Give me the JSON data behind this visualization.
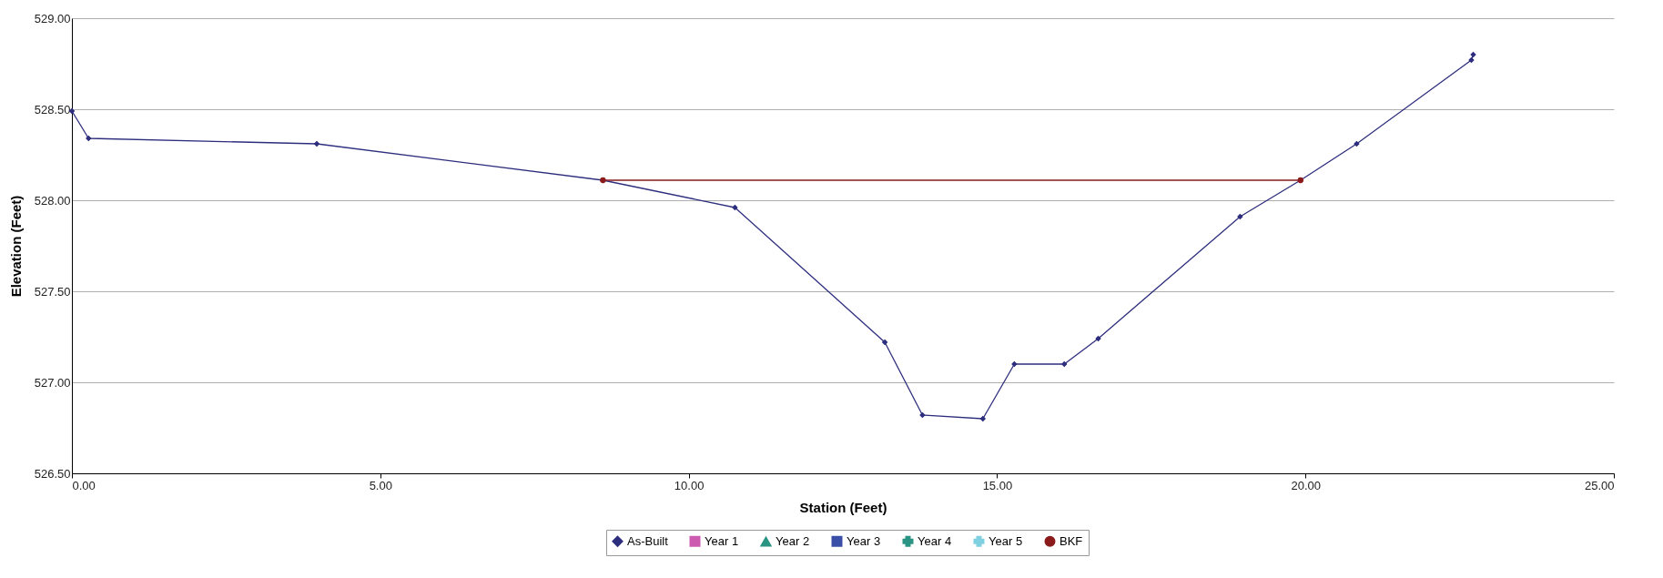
{
  "chart_data": {
    "type": "line",
    "xlabel": "Station (Feet)",
    "ylabel": "Elevation (Feet)",
    "xlim": [
      0,
      25
    ],
    "xticks": [
      {
        "value": 0,
        "label": "0.00"
      },
      {
        "value": 5,
        "label": "5.00"
      },
      {
        "value": 10,
        "label": "10.00"
      },
      {
        "value": 15,
        "label": "15.00"
      },
      {
        "value": 20,
        "label": "20.00"
      },
      {
        "value": 25,
        "label": "25.00"
      }
    ],
    "ylim": [
      526.5,
      529
    ],
    "yticks": [
      {
        "value": 526.5,
        "label": "526.50"
      },
      {
        "value": 527,
        "label": "527.00"
      },
      {
        "value": 527.5,
        "label": "527.50"
      },
      {
        "value": 528,
        "label": "528.00"
      },
      {
        "value": 528.5,
        "label": "528.50"
      },
      {
        "value": 529,
        "label": "529.00"
      }
    ],
    "grid": "y",
    "legend": "bottom",
    "line_style": "solid",
    "series": [
      {
        "name": "As-Built",
        "color": "#2e2e7e",
        "marker": "diamond",
        "x": [
          0,
          0.27,
          3.97,
          8.61,
          10.75,
          13.18,
          13.79,
          14.77,
          15.28,
          16.09,
          16.64,
          18.94,
          19.92,
          20.83,
          22.69,
          22.72
        ],
        "values": [
          528.49,
          528.34,
          528.31,
          528.11,
          527.96,
          527.22,
          526.82,
          526.8,
          527.1,
          527.1,
          527.24,
          527.91,
          528.11,
          528.31,
          528.77,
          528.8
        ]
      },
      {
        "name": "Year 1",
        "color": "#cc5bb0",
        "marker": "square"
      },
      {
        "name": "Year 2",
        "color": "#2a9484",
        "marker": "triangle"
      },
      {
        "name": "Year 3",
        "color": "#3a4fa8",
        "marker": "square"
      },
      {
        "name": "Year 4",
        "color": "#2a9484",
        "marker": "cross"
      },
      {
        "name": "Year 5",
        "color": "#7fd0e0",
        "marker": "cross"
      },
      {
        "name": "BKF",
        "color": "#8b1a1a",
        "marker": "circle",
        "x": [
          8.61,
          19.92
        ],
        "values": [
          528.11,
          528.11
        ]
      }
    ]
  }
}
